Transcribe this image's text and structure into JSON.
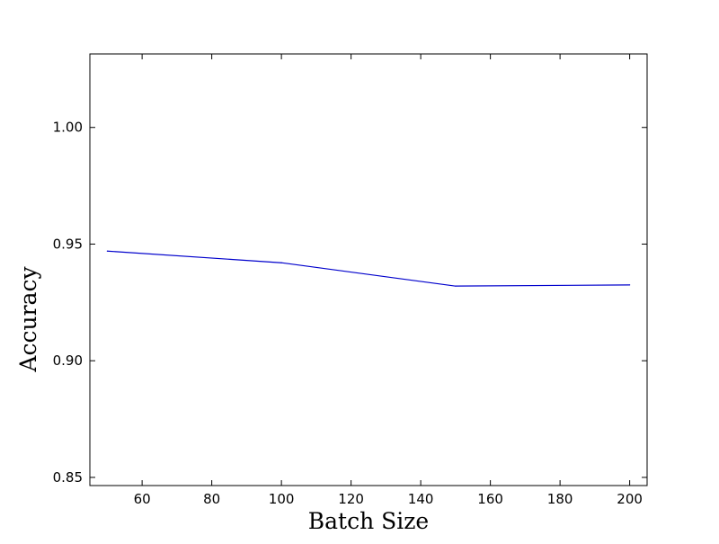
{
  "chart_data": {
    "type": "line",
    "title": "",
    "xlabel": "Batch Size",
    "ylabel": "Accuracy",
    "xlim": [
      45,
      205
    ],
    "ylim": [
      0.8465,
      1.0315
    ],
    "grid": false,
    "legend": "none",
    "x_ticks": [
      60,
      80,
      100,
      120,
      140,
      160,
      180,
      200
    ],
    "y_ticks": [
      0.85,
      0.9,
      0.95,
      1.0
    ],
    "x_tick_labels": [
      "60",
      "80",
      "100",
      "120",
      "140",
      "160",
      "180",
      "200"
    ],
    "y_tick_labels": [
      "0.85",
      "0.90",
      "0.95",
      "1.00"
    ],
    "series": [
      {
        "x": [
          50,
          100,
          150,
          200
        ],
        "values": [
          0.947,
          0.942,
          0.932,
          0.9325
        ],
        "color": "#0000cc"
      }
    ]
  }
}
